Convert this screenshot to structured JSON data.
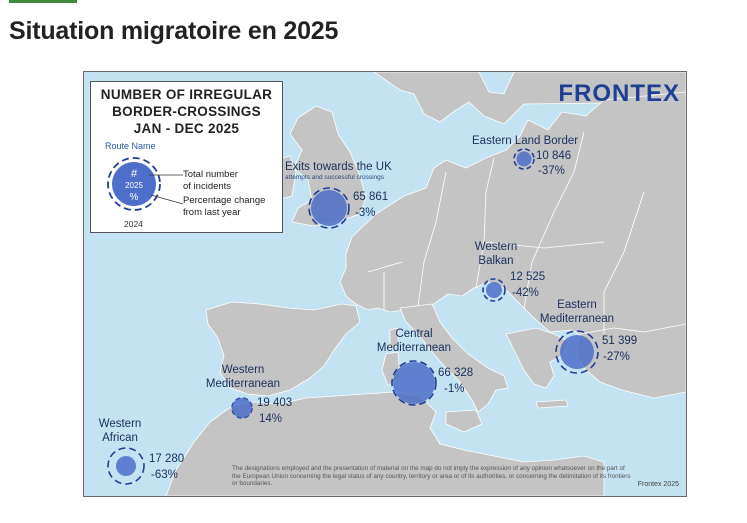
{
  "page": {
    "title": "Situation migratoire en 2025",
    "accent_color": "#3f8a3c"
  },
  "map": {
    "colors": {
      "sea": "#c3e3f2",
      "land": "#c4c4c4",
      "border": "#ffffff",
      "marker_fill": "#4d6fc9",
      "marker_stroke": "#1f3f95",
      "text": "#1a2f5a"
    },
    "logo": "FRONTEX",
    "legend": {
      "title_lines": [
        "NUMBER OF IRREGULAR",
        "BORDER-CROSSINGS",
        "JAN - DEC 2025"
      ],
      "route_name": "Route Name",
      "hash": "#",
      "year_current": "2025",
      "percent": "%",
      "year_previous": "2024",
      "total_line1": "Total number",
      "total_line2": "of incidents",
      "change_line1": "Percentage change",
      "change_line2": "from last year"
    },
    "routes": [
      {
        "id": "eastern-land-border",
        "name_lines": [
          "Eastern Land Border"
        ],
        "total": "10 846",
        "change": "-37%",
        "incidents": 10846,
        "change_pct": -37
      },
      {
        "id": "exits-uk",
        "name_lines": [
          "Exits towards the UK"
        ],
        "subtitle": "attempts and successful crossings",
        "total": "65 861",
        "change": "-3%",
        "incidents": 65861,
        "change_pct": -3
      },
      {
        "id": "western-balkan",
        "name_lines": [
          "Western",
          "Balkan"
        ],
        "total": "12 525",
        "change": "-42%",
        "incidents": 12525,
        "change_pct": -42
      },
      {
        "id": "eastern-mediterranean",
        "name_lines": [
          "Eastern",
          "Mediterranean"
        ],
        "total": "51 399",
        "change": "-27%",
        "incidents": 51399,
        "change_pct": -27
      },
      {
        "id": "central-mediterranean",
        "name_lines": [
          "Central",
          "Mediterranean"
        ],
        "total": "66 328",
        "change": "-1%",
        "incidents": 66328,
        "change_pct": -1
      },
      {
        "id": "western-mediterranean",
        "name_lines": [
          "Western",
          "Mediterranean"
        ],
        "total": "19 403",
        "change": "14%",
        "incidents": 19403,
        "change_pct": 14
      },
      {
        "id": "western-african",
        "name_lines": [
          "Western",
          "African"
        ],
        "total": "17 280",
        "change": "-63%",
        "incidents": 17280,
        "change_pct": -63
      }
    ],
    "disclaimer": "The designations employed and the presentation of material on the map do not imply the expression of any opinion whatsoever on the part of the European Union concerning the legal status of any country, territory or area or of its authorities, or concerning the delimitation of its frontiers or boundaries.",
    "credit": "Frontex 2025"
  }
}
